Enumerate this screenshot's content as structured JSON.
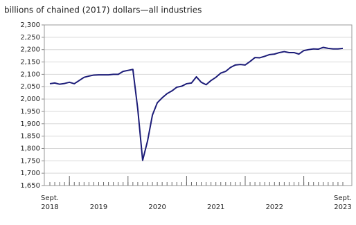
{
  "chart_data": {
    "type": "line",
    "title": "billions of chained (2017) dollars—all industries",
    "categories": [
      null,
      null,
      null,
      null,
      null,
      null,
      null,
      null,
      null,
      null,
      null,
      null,
      null,
      null,
      null,
      null,
      null,
      null,
      null,
      null,
      null,
      null,
      null,
      null,
      null,
      null,
      null,
      null,
      null,
      null,
      null,
      null,
      null,
      null,
      null,
      null,
      null,
      null,
      null,
      null,
      null,
      null,
      null,
      null,
      null,
      null,
      null,
      null,
      null,
      null,
      null,
      null,
      null,
      null,
      null,
      null,
      null,
      null,
      null,
      null,
      null
    ],
    "series": [
      {
        "name": "all industries",
        "color": "#1c1c78",
        "values": [
          2062,
          2065,
          2060,
          2063,
          2068,
          2062,
          2075,
          2088,
          2093,
          2097,
          2098,
          2098,
          2098,
          2100,
          2100,
          2112,
          2116,
          2120,
          1960,
          1752,
          1830,
          1935,
          1985,
          2005,
          2022,
          2033,
          2048,
          2052,
          2062,
          2065,
          2090,
          2068,
          2058,
          2075,
          2088,
          2105,
          2112,
          2128,
          2138,
          2140,
          2138,
          2152,
          2168,
          2167,
          2173,
          2180,
          2182,
          2188,
          2192,
          2188,
          2188,
          2182,
          2196,
          2200,
          2203,
          2202,
          2209,
          2205,
          2203,
          2203,
          2205
        ]
      }
    ],
    "xticks": [
      {
        "value": 0,
        "label": [
          "Sept.",
          "2018"
        ]
      },
      {
        "value": 10,
        "label": "2019"
      },
      {
        "value": 22,
        "label": "2020"
      },
      {
        "value": 34,
        "label": "2021"
      },
      {
        "value": 46,
        "label": "2022"
      },
      {
        "value": 60,
        "label": [
          "Sept.",
          "2023"
        ]
      }
    ],
    "xticks_major": [
      4,
      16,
      28,
      40,
      52
    ],
    "ylim": [
      1650,
      2300
    ],
    "yticks": [
      {
        "value": 1650,
        "label": "1,650"
      },
      {
        "value": 1700,
        "label": "1,700"
      },
      {
        "value": 1750,
        "label": "1,750"
      },
      {
        "value": 1800,
        "label": "1,800"
      },
      {
        "value": 1850,
        "label": "1,850"
      },
      {
        "value": 1900,
        "label": "1,900"
      },
      {
        "value": 1950,
        "label": "1,950"
      },
      {
        "value": 2000,
        "label": "2,000"
      },
      {
        "value": 2050,
        "label": "2,050"
      },
      {
        "value": 2100,
        "label": "2,100"
      },
      {
        "value": 2150,
        "label": "2,150"
      },
      {
        "value": 2200,
        "label": "2,200"
      },
      {
        "value": 2250,
        "label": "2,250"
      },
      {
        "value": 2300,
        "label": "2,300"
      }
    ],
    "grid": true
  }
}
